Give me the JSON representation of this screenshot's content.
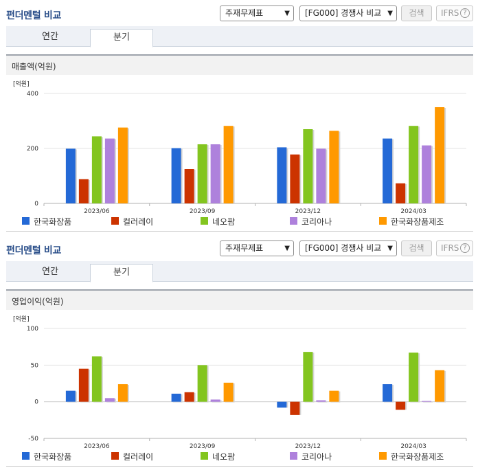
{
  "panels": [
    {
      "title": "펀더멘털 비교",
      "select1": "주재무제표",
      "select2": "[FG000] 경쟁사 비교",
      "search_label": "검색",
      "ifrs_label": "IFRS",
      "help_label": "?",
      "tabs": [
        "연간",
        "분기"
      ],
      "metric_label": "매출액(억원)",
      "chart_data": {
        "type": "bar",
        "unit_label": "[억원]",
        "categories": [
          "2023/06",
          "2023/09",
          "2023/12",
          "2024/03"
        ],
        "ylim": [
          0,
          400
        ],
        "yticks": [
          0,
          200,
          400
        ],
        "grid": true,
        "legend": "bottom",
        "series": [
          {
            "name": "한국화장품",
            "color": "#2469d6",
            "values": [
              199,
              201,
              204,
              236
            ]
          },
          {
            "name": "컬러레이",
            "color": "#cc3300",
            "values": [
              88,
              125,
              178,
              73
            ]
          },
          {
            "name": "네오팜",
            "color": "#83c51f",
            "values": [
              244,
              215,
              270,
              282
            ]
          },
          {
            "name": "코리아나",
            "color": "#ae81dc",
            "values": [
              236,
              215,
              199,
              211
            ]
          },
          {
            "name": "한국화장품제조",
            "color": "#ff9900",
            "values": [
              276,
              282,
              264,
              350
            ]
          }
        ]
      }
    },
    {
      "title": "펀더멘털 비교",
      "select1": "주재무제표",
      "select2": "[FG000] 경쟁사 비교",
      "search_label": "검색",
      "ifrs_label": "IFRS",
      "help_label": "?",
      "tabs": [
        "연간",
        "분기"
      ],
      "metric_label": "영업이익(억원)",
      "chart_data": {
        "type": "bar",
        "unit_label": "[억원]",
        "categories": [
          "2023/06",
          "2023/09",
          "2023/12",
          "2024/03"
        ],
        "ylim": [
          -50,
          100
        ],
        "yticks": [
          -50,
          0,
          50,
          100
        ],
        "grid": true,
        "legend": "bottom",
        "series": [
          {
            "name": "한국화장품",
            "color": "#2469d6",
            "values": [
              15,
              11,
              -8,
              24
            ]
          },
          {
            "name": "컬러레이",
            "color": "#cc3300",
            "values": [
              45,
              13,
              -18,
              -11
            ]
          },
          {
            "name": "네오팜",
            "color": "#83c51f",
            "values": [
              62,
              50,
              68,
              67
            ]
          },
          {
            "name": "코리아나",
            "color": "#ae81dc",
            "values": [
              5,
              3,
              2,
              1
            ]
          },
          {
            "name": "한국화장품제조",
            "color": "#ff9900",
            "values": [
              24,
              26,
              15,
              43
            ]
          }
        ]
      }
    }
  ]
}
